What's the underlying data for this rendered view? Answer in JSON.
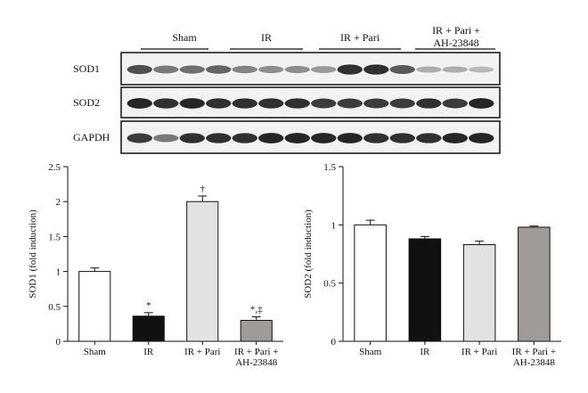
{
  "blot": {
    "groups": [
      "Sham",
      "IR",
      "IR + Pari",
      "IR + Pari +",
      "AH-23848"
    ],
    "proteins": [
      {
        "name": "SOD1",
        "intensity": [
          0.75,
          0.55,
          0.6,
          0.65,
          0.5,
          0.45,
          0.45,
          0.4,
          0.9,
          0.9,
          0.7,
          0.3,
          0.3,
          0.25
        ]
      },
      {
        "name": "SOD2",
        "intensity": [
          0.95,
          0.9,
          0.95,
          0.9,
          0.9,
          0.9,
          0.9,
          0.85,
          0.85,
          0.85,
          0.85,
          0.9,
          0.85,
          0.95
        ]
      },
      {
        "name": "GAPDH",
        "intensity": [
          0.85,
          0.55,
          0.9,
          0.9,
          0.9,
          0.95,
          0.95,
          0.95,
          0.95,
          0.9,
          0.9,
          0.9,
          0.95,
          0.95
        ]
      }
    ]
  },
  "chart_data": [
    {
      "type": "bar",
      "categories": [
        "Sham",
        "IR",
        "IR + Pari",
        "IR + Pari +\nAH-23848"
      ],
      "values": [
        1.0,
        0.36,
        2.0,
        0.3
      ],
      "errors": [
        0.05,
        0.05,
        0.08,
        0.05
      ],
      "annotations": [
        "",
        "*",
        "†",
        "*,‡"
      ],
      "colors": [
        "#ffffff",
        "#111111",
        "#e2e2e2",
        "#a09a98"
      ],
      "ylabel": "SOD1 (fold induction)",
      "yticks": [
        0,
        0.5,
        1,
        1.5,
        2,
        2.5
      ],
      "ylim": [
        0,
        2.5
      ]
    },
    {
      "type": "bar",
      "categories": [
        "Sham",
        "IR",
        "IR + Pari",
        "IR + Pari +\nAH-23848"
      ],
      "values": [
        1.0,
        0.88,
        0.83,
        0.98
      ],
      "errors": [
        0.04,
        0.02,
        0.03,
        0.01
      ],
      "annotations": [
        "",
        "",
        "",
        ""
      ],
      "colors": [
        "#ffffff",
        "#111111",
        "#e2e2e2",
        "#a09a98"
      ],
      "ylabel": "SOD2 (fold induction)",
      "yticks": [
        0,
        0.5,
        1,
        1.5
      ],
      "ylim": [
        0,
        1.5
      ]
    }
  ]
}
